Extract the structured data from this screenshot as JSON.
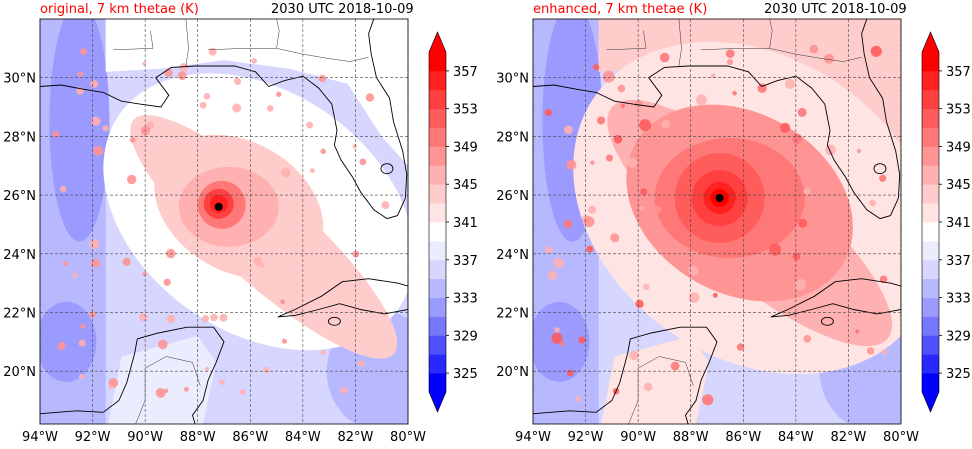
{
  "colorbar": {
    "levels": [
      "325",
      "329",
      "333",
      "337",
      "341",
      "345",
      "349",
      "353",
      "357"
    ],
    "colors_low_to_high": [
      "#0000ff",
      "#2828ff",
      "#5050ff",
      "#7878ff",
      "#9a9aff",
      "#b8b8ff",
      "#d6d6ff",
      "#ececff",
      "#ffffff",
      "#ffe4e4",
      "#ffcccc",
      "#ffb0b0",
      "#ff9494",
      "#ff7878",
      "#ff5c5c",
      "#ff4040",
      "#ff2020",
      "#ff0000"
    ]
  },
  "axes": {
    "lat_labels": [
      "30°N",
      "28°N",
      "26°N",
      "24°N",
      "22°N",
      "20°N"
    ],
    "lon_labels": [
      "94°W",
      "92°W",
      "90°W",
      "88°W",
      "86°W",
      "84°W",
      "82°W",
      "80°W"
    ]
  },
  "panels": [
    {
      "title_left": "original, 7 km thetae (K)",
      "title_right": "2030 UTC 2018-10-09",
      "storm_center": {
        "lon": -87.2,
        "lat": 25.6
      },
      "core_intensity": "weak"
    },
    {
      "title_left": "enhanced, 7 km thetae (K)",
      "title_right": "2030 UTC 2018-10-09",
      "storm_center": {
        "lon": -86.9,
        "lat": 25.9
      },
      "core_intensity": "strong"
    }
  ]
}
